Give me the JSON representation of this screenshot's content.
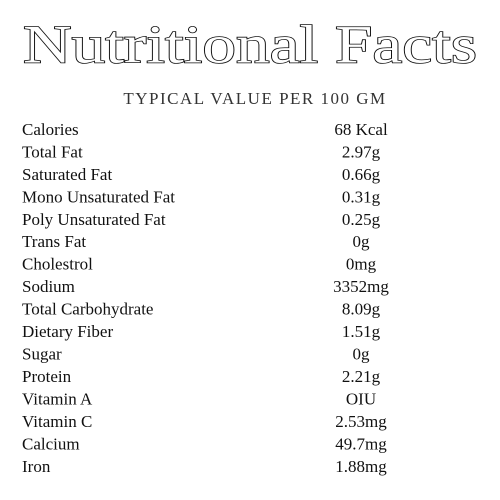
{
  "header": {
    "title": "Nutritional Facts",
    "subtitle": "TYPICAL VALUE PER 100 GM"
  },
  "table": {
    "rows": [
      [
        "Calories",
        "68 Kcal"
      ],
      [
        "Total Fat",
        "2.97g"
      ],
      [
        "Saturated Fat",
        "0.66g"
      ],
      [
        "Mono Unsaturated Fat",
        "0.31g"
      ],
      [
        "Poly Unsaturated Fat",
        "0.25g"
      ],
      [
        "Trans Fat",
        "0g"
      ],
      [
        "Cholestrol",
        "0mg"
      ],
      [
        "Sodium",
        "3352mg"
      ],
      [
        "Total Carbohydrate",
        "8.09g"
      ],
      [
        "Dietary Fiber",
        "1.51g"
      ],
      [
        "Sugar",
        "0g"
      ],
      [
        "Protein",
        "2.21g"
      ],
      [
        "Vitamin A",
        "OIU"
      ],
      [
        "Vitamin C",
        "2.53mg"
      ],
      [
        "Calcium",
        "49.7mg"
      ],
      [
        "Iron",
        "1.88mg"
      ]
    ]
  }
}
